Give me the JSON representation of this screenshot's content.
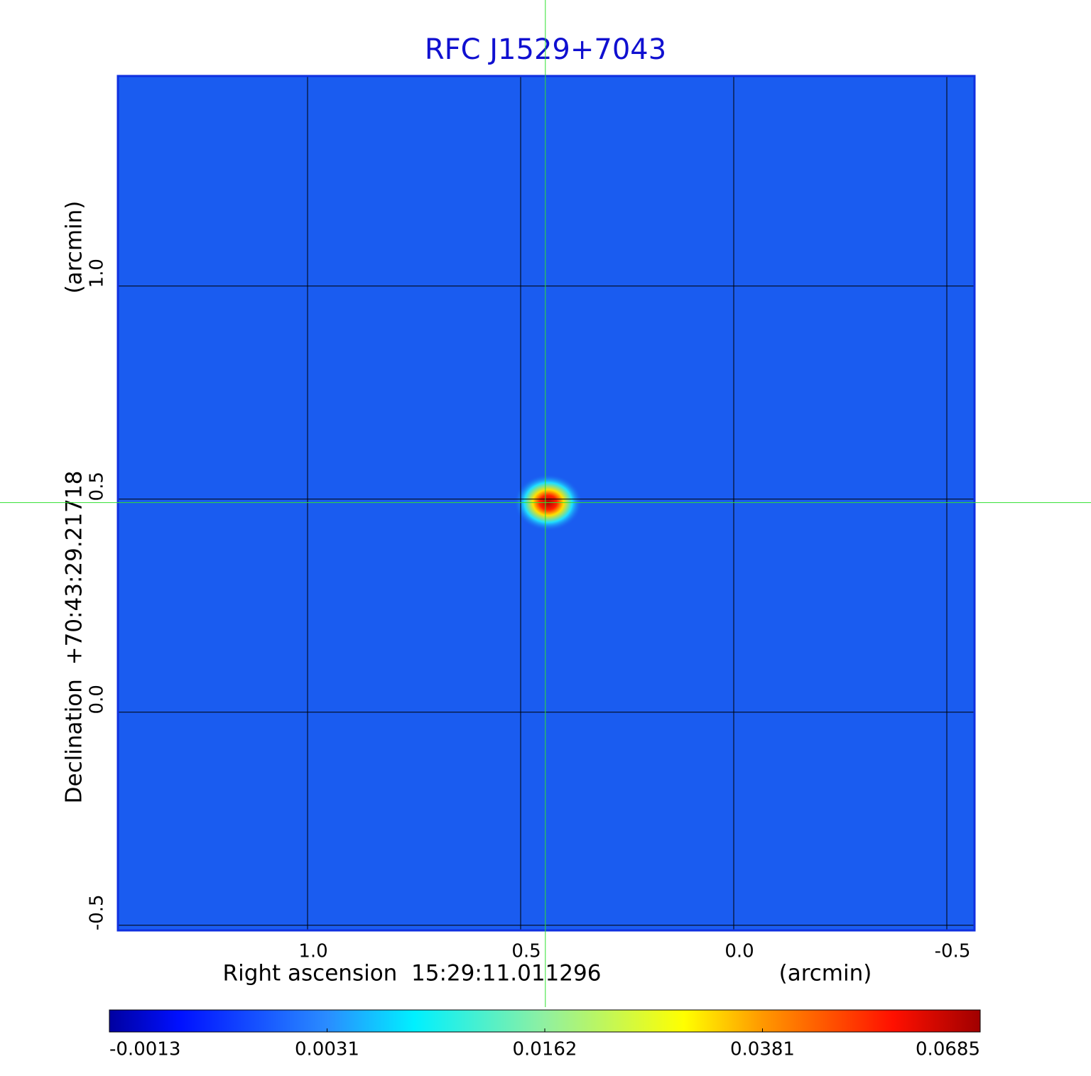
{
  "chart_data": {
    "type": "image",
    "title": "RFC J1529+7043",
    "x_label": "Right ascension  15:29:11.011296",
    "x_unit": "(arcmin)",
    "y_label": "Declination  +70:43:29.21718",
    "y_unit": "(arcmin)",
    "xlim": [
      1.445,
      -0.565
    ],
    "ylim": [
      -0.512,
      1.493
    ],
    "xticks": [
      {
        "value": 1,
        "label": "1.0"
      },
      0.5,
      {
        "value": 0,
        "label": "0.0"
      },
      -0.5
    ],
    "yticks": [
      -0.5,
      {
        "value": 0,
        "label": "0.0"
      },
      0.5,
      {
        "value": 1,
        "label": "1.0"
      }
    ],
    "grid": true,
    "crosshair": {
      "x": 0.442,
      "y": 0.492
    },
    "colorbar_lim": [
      -0.0013,
      0.0685
    ],
    "colorbar_ticks": [
      -0.0013,
      0.0031,
      0.0162,
      0.0381,
      0.0685
    ]
  }
}
